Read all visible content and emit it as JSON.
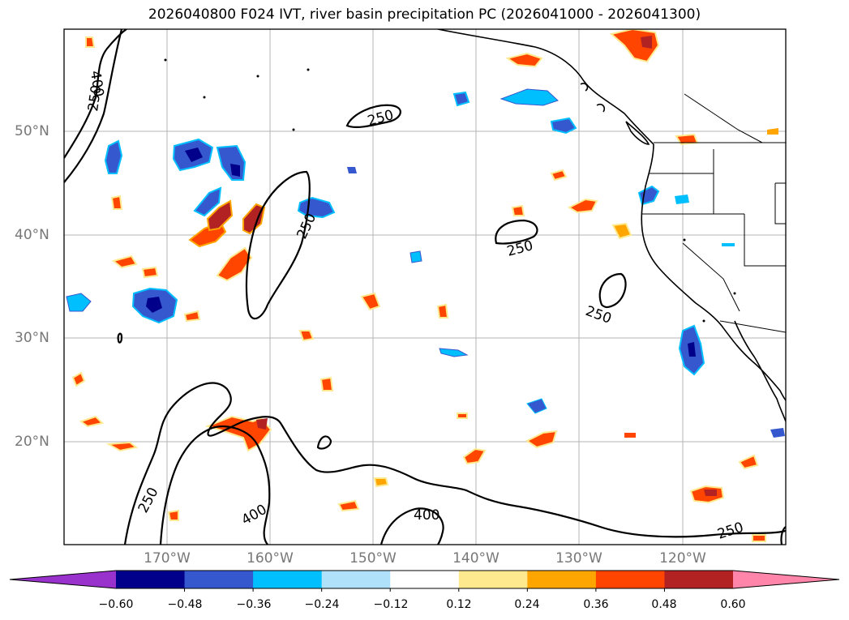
{
  "title": "2026040800 F024 IVT, river basin precipitation PC (2026041000 - 2026041300)",
  "lat_labels": [
    "50°N",
    "40°N",
    "30°N",
    "20°N"
  ],
  "lon_labels": [
    "170°W",
    "160°W",
    "150°W",
    "140°W",
    "130°W",
    "120°W"
  ],
  "contour_labels": [
    "400",
    "250",
    "250",
    "250",
    "250",
    "250",
    "250",
    "400",
    "400",
    "250"
  ],
  "colorbar": {
    "ticks": [
      "−0.60",
      "−0.48",
      "−0.36",
      "−0.24",
      "−0.12",
      "0.12",
      "0.24",
      "0.36",
      "0.48",
      "0.60"
    ],
    "colors": [
      "#9932cc",
      "#00008b",
      "#3658cf",
      "#00bfff",
      "#afe1fa",
      "#ffffff",
      "#ffe98f",
      "#ffa500",
      "#ff4500",
      "#b22222",
      "#ff85aa"
    ],
    "extend": "both"
  },
  "map": {
    "region": "North Pacific / US West Coast",
    "lat_range": [
      10,
      60
    ],
    "lon_range": [
      -180,
      -110
    ],
    "ivt_contour_levels": [
      250,
      400
    ]
  }
}
